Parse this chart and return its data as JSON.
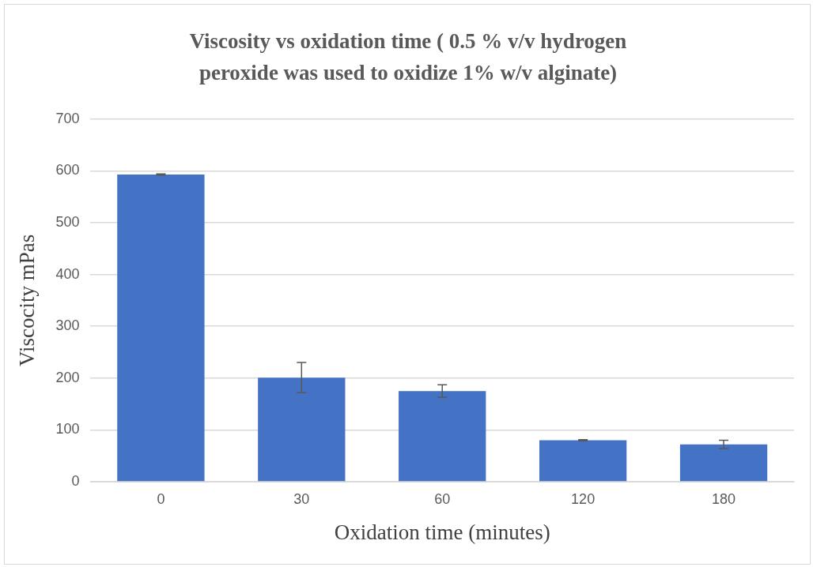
{
  "chart_data": {
    "type": "bar",
    "title": "Viscosity vs oxidation time ( 0.5 % v/v hydrogen peroxide was used to oxidize 1% w/v alginate)",
    "xlabel": "Oxidation time (minutes)",
    "ylabel": "Viscocity mPas",
    "categories": [
      "0",
      "30",
      "60",
      "120",
      "180"
    ],
    "values": [
      593,
      201,
      175,
      80,
      72
    ],
    "errors": [
      1,
      29,
      12,
      1,
      8
    ],
    "color": "#4472c4",
    "ylim": [
      0,
      700
    ],
    "yticks": [
      0,
      100,
      200,
      300,
      400,
      500,
      600,
      700
    ],
    "grid": "y"
  }
}
